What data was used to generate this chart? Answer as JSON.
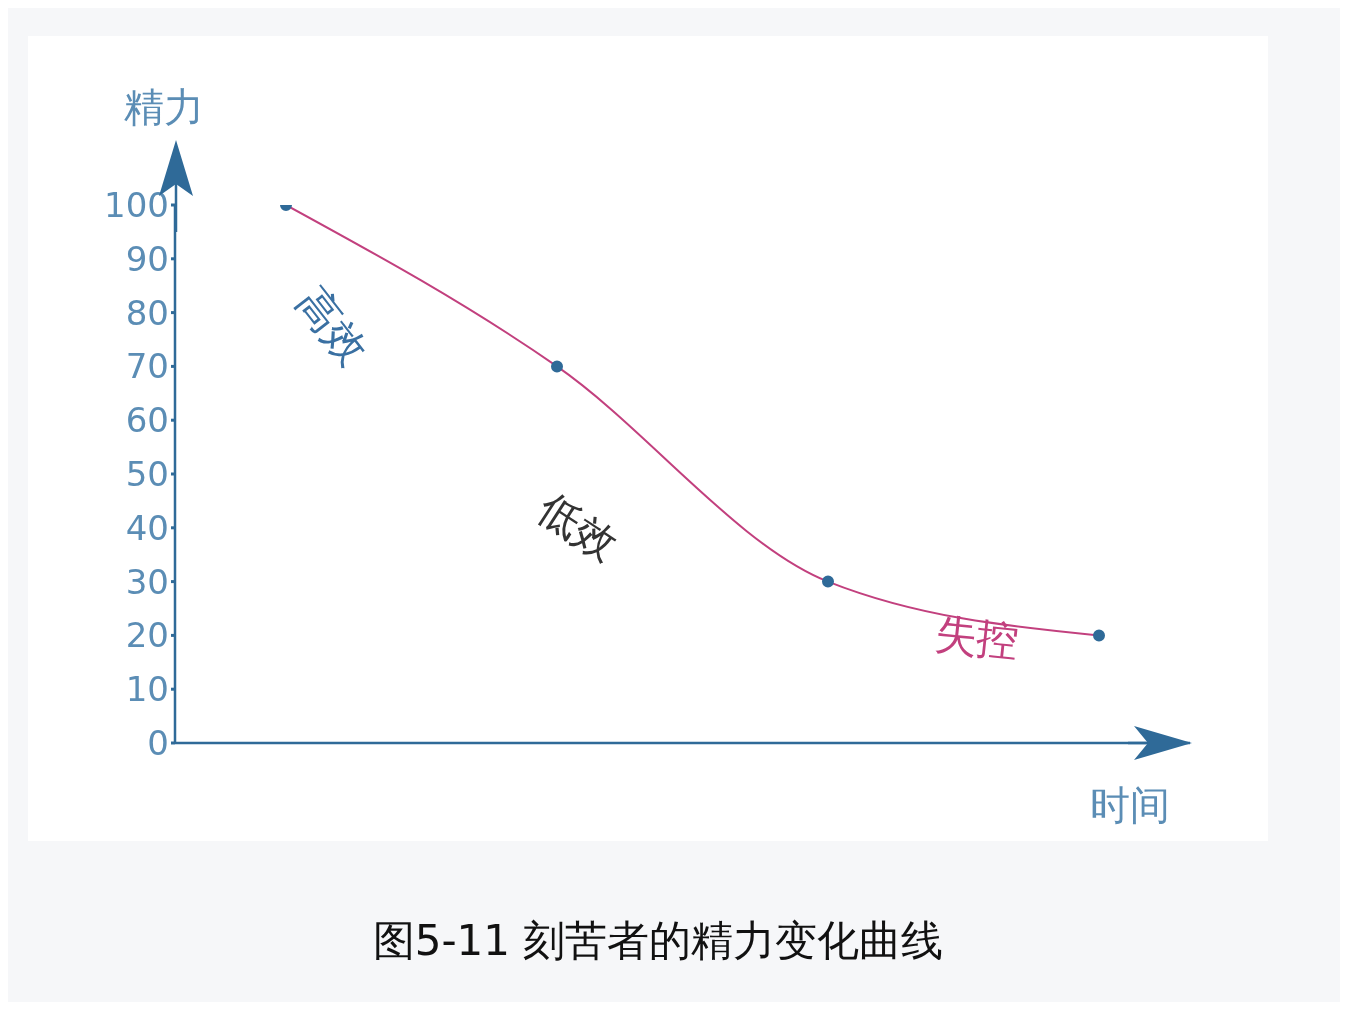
{
  "chart_data": {
    "type": "line",
    "title": "图5-11 刻苦者的精力变化曲线",
    "xlabel": "时间",
    "ylabel": "精力",
    "categories": [
      null,
      null,
      null,
      null
    ],
    "series": [
      {
        "color": "#c2407e",
        "values": [
          100,
          70,
          30,
          20
        ]
      }
    ],
    "ylim": [
      0,
      100
    ],
    "yticks": [
      0,
      10,
      20,
      30,
      40,
      50,
      60,
      70,
      80,
      90,
      100
    ],
    "grid": false,
    "legend": false,
    "marker": "circle",
    "line_style": "solid",
    "annotations": [
      "高效",
      "低效",
      "失控"
    ]
  }
}
